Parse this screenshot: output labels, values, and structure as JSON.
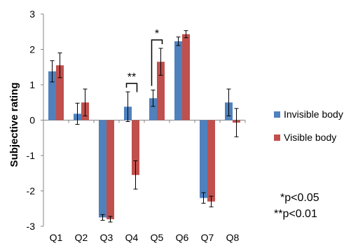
{
  "chart_data": {
    "type": "bar",
    "title": "",
    "xlabel": "",
    "ylabel": "Subjective rating",
    "ylim": [
      -3,
      3
    ],
    "yticks": [
      -3,
      -2,
      -1,
      0,
      1,
      2,
      3
    ],
    "grid": false,
    "legend_position": "right",
    "categories": [
      "Q1",
      "Q2",
      "Q3",
      "Q4",
      "Q5",
      "Q6",
      "Q7",
      "Q8"
    ],
    "series": [
      {
        "name": "Invisible body",
        "color": "#4F81BD",
        "values": [
          1.38,
          0.18,
          -2.75,
          0.38,
          0.62,
          2.23,
          -2.2,
          0.5
        ],
        "errors": [
          0.3,
          0.3,
          0.08,
          0.42,
          0.23,
          0.12,
          0.15,
          0.38
        ]
      },
      {
        "name": "Visible body",
        "color": "#C0504D",
        "values": [
          1.55,
          0.5,
          -2.8,
          -1.55,
          1.65,
          2.43,
          -2.3,
          -0.07
        ],
        "errors": [
          0.35,
          0.38,
          0.08,
          0.4,
          0.38,
          0.1,
          0.15,
          0.4
        ]
      }
    ],
    "significance": [
      {
        "category": "Q4",
        "label": "**"
      },
      {
        "category": "Q5",
        "label": "*"
      }
    ],
    "notes": [
      "*p<0.05",
      "**p<0.01"
    ]
  }
}
